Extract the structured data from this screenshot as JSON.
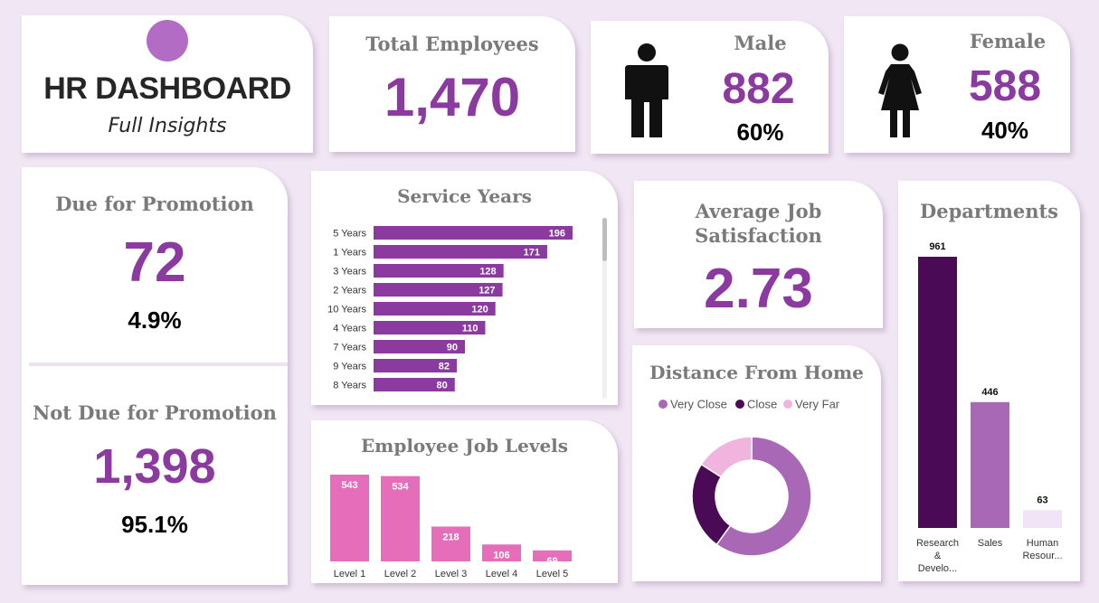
{
  "brand": {
    "title": "HR DASHBOARD",
    "subtitle": "Full Insights",
    "logo_color": "#b36cc3"
  },
  "total": {
    "label": "Total Employees",
    "value": "1,470"
  },
  "male": {
    "label": "Male",
    "value": "882",
    "pct": "60%",
    "icon": "male-person-icon"
  },
  "female": {
    "label": "Female",
    "value": "588",
    "pct": "40%",
    "icon": "female-person-icon"
  },
  "promotion": {
    "due_label": "Due for Promotion",
    "due_value": "72",
    "due_pct": "4.9%",
    "not_label": "Not Due for Promotion",
    "not_value": "1,398",
    "not_pct": "95.1%"
  },
  "satisfaction": {
    "label_line1": "Average Job",
    "label_line2": "Satisfaction",
    "value": "2.73"
  },
  "colors": {
    "accent": "#8b3aa0",
    "bar": "#8b3aa0",
    "pink": "#e66db9",
    "dark_purple": "#4b0a55",
    "mid_purple": "#a868b5",
    "light_purple": "#f1e4f6"
  },
  "chart_data": [
    {
      "type": "bar",
      "orientation": "horizontal",
      "title": "Service Years",
      "categories": [
        "5 Years",
        "1 Years",
        "3 Years",
        "2 Years",
        "10 Years",
        "4 Years",
        "7 Years",
        "9 Years",
        "8 Years"
      ],
      "values": [
        196,
        171,
        128,
        127,
        120,
        110,
        90,
        82,
        80
      ],
      "color": "#8b3aa0"
    },
    {
      "type": "bar",
      "title": "Employee Job Levels",
      "categories": [
        "Level 1",
        "Level 2",
        "Level 3",
        "Level 4",
        "Level 5"
      ],
      "values": [
        543,
        534,
        218,
        106,
        69
      ],
      "color": "#e66db9"
    },
    {
      "type": "pie",
      "title": "Distance From Home",
      "legend": "top",
      "series": [
        {
          "name": "Very Close",
          "value": 60,
          "color": "#a868b5"
        },
        {
          "name": "Close",
          "value": 24,
          "color": "#4b0a55"
        },
        {
          "name": "Very Far",
          "value": 16,
          "color": "#f0b4de"
        }
      ]
    },
    {
      "type": "bar",
      "title": "Departments",
      "categories": [
        "Research & Develo...",
        "Sales",
        "Human Resour..."
      ],
      "values": [
        961,
        446,
        63
      ],
      "colors": [
        "#4b0a55",
        "#a868b5",
        "#f1e4f6"
      ]
    }
  ]
}
